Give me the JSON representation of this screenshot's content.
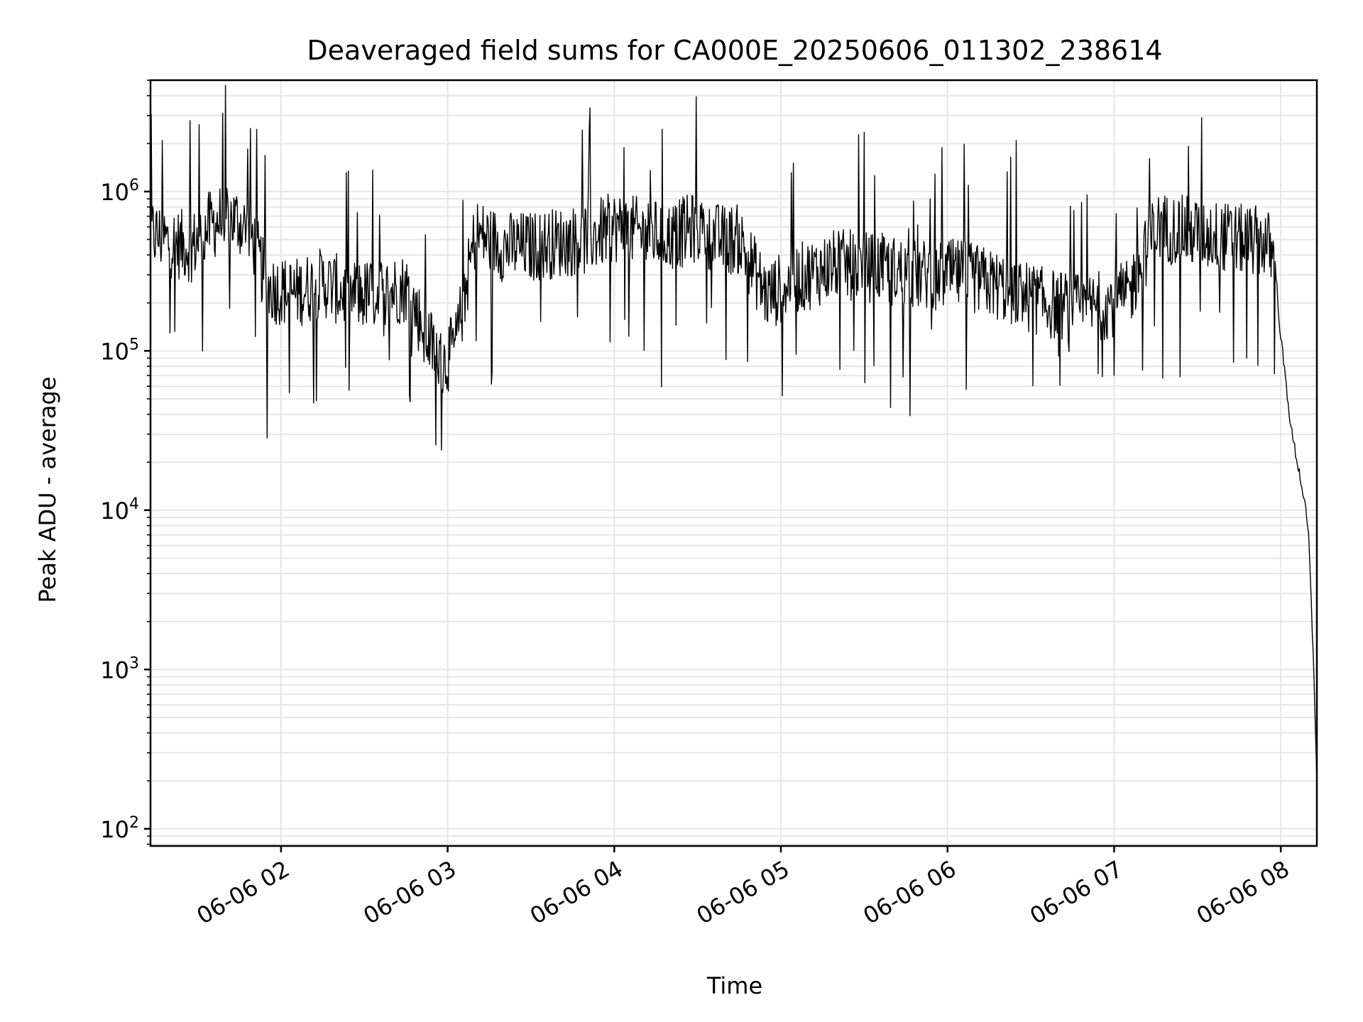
{
  "chart_data": {
    "type": "line",
    "title": "Deaveraged field sums for CA000E_20250606_011302_238614",
    "xlabel": "Time",
    "ylabel": "Peak ADU - average",
    "y_scale": "log",
    "ylim": [
      78,
      5000000
    ],
    "xlim": [
      "06-06 01:13",
      "06-06 08:13"
    ],
    "grid": true,
    "x_ticks": [
      "06-06 02",
      "06-06 03",
      "06-06 04",
      "06-06 05",
      "06-06 06",
      "06-06 07",
      "06-06 08"
    ],
    "y_ticks": [
      {
        "value": 100,
        "base": "10",
        "exp": "2"
      },
      {
        "value": 1000,
        "base": "10",
        "exp": "3"
      },
      {
        "value": 10000,
        "base": "10",
        "exp": "4"
      },
      {
        "value": 100000,
        "base": "10",
        "exp": "5"
      },
      {
        "value": 1000000,
        "base": "10",
        "exp": "6"
      }
    ],
    "line_color": "#000000",
    "series": [
      {
        "x": [
          "06-06 01:13",
          "06-06 01:20",
          "06-06 01:28",
          "06-06 01:34",
          "06-06 01:40",
          "06-06 01:45",
          "06-06 01:50",
          "06-06 01:55",
          "06-06 02:05",
          "06-06 02:15",
          "06-06 02:25",
          "06-06 02:35",
          "06-06 02:45",
          "06-06 02:52",
          "06-06 02:58",
          "06-06 03:03",
          "06-06 03:10",
          "06-06 03:20",
          "06-06 03:30",
          "06-06 03:40",
          "06-06 03:50",
          "06-06 04:00",
          "06-06 04:10",
          "06-06 04:20",
          "06-06 04:30",
          "06-06 04:38",
          "06-06 04:45",
          "06-06 04:55",
          "06-06 05:05",
          "06-06 05:20",
          "06-06 05:35",
          "06-06 05:50",
          "06-06 06:05",
          "06-06 06:20",
          "06-06 06:35",
          "06-06 06:50",
          "06-06 07:05",
          "06-06 07:15",
          "06-06 07:30",
          "06-06 07:45",
          "06-06 07:55",
          "06-06 07:58",
          "06-06 08:00",
          "06-06 08:02",
          "06-06 08:04",
          "06-06 08:06",
          "06-06 08:08",
          "06-06 08:10",
          "06-06 08:11",
          "06-06 08:12",
          "06-06 08:13"
        ],
        "y": [
          550000,
          480000,
          450000,
          600000,
          700000,
          650000,
          500000,
          250000,
          230000,
          270000,
          220000,
          230000,
          250000,
          130000,
          80000,
          110000,
          550000,
          450000,
          450000,
          480000,
          500000,
          600000,
          550000,
          520000,
          600000,
          500000,
          500000,
          220000,
          280000,
          350000,
          330000,
          300000,
          300000,
          250000,
          200000,
          180000,
          220000,
          600000,
          550000,
          500000,
          480000,
          350000,
          120000,
          60000,
          30000,
          20000,
          13000,
          7000,
          2500,
          900,
          200
        ]
      }
    ]
  }
}
